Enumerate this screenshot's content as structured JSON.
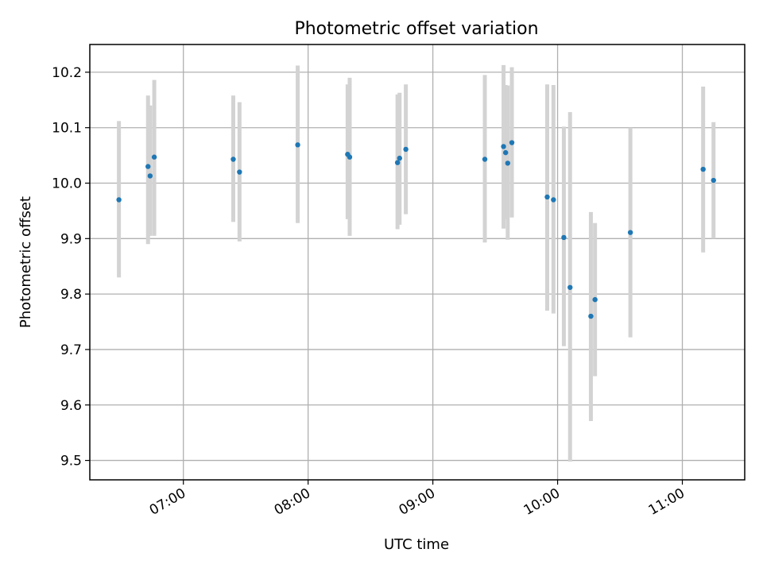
{
  "chart_data": {
    "type": "scatter",
    "title": "Photometric offset variation",
    "xlabel": "UTC time",
    "ylabel": "Photometric offset",
    "x_is_time": true,
    "xlim": [
      "06:15",
      "11:30"
    ],
    "ylim": [
      9.465,
      10.25
    ],
    "x_ticks": [
      "07:00",
      "08:00",
      "09:00",
      "10:00",
      "11:00"
    ],
    "y_ticks": [
      9.5,
      9.6,
      9.7,
      9.8,
      9.9,
      10.0,
      10.1,
      10.2
    ],
    "grid": true,
    "colors": {
      "points": "#1f77b4",
      "error_bars": "#d3d3d3"
    },
    "series": [
      {
        "error_bars": "y",
        "points": [
          {
            "x": "06:29",
            "y": 9.97,
            "ylo": 9.83,
            "yhi": 10.112
          },
          {
            "x": "06:43",
            "y": 10.03,
            "ylo": 9.89,
            "yhi": 10.158
          },
          {
            "x": "06:44",
            "y": 10.013,
            "ylo": 9.905,
            "yhi": 10.14
          },
          {
            "x": "06:46",
            "y": 10.047,
            "ylo": 9.905,
            "yhi": 10.186
          },
          {
            "x": "07:24",
            "y": 10.043,
            "ylo": 9.93,
            "yhi": 10.158
          },
          {
            "x": "07:27",
            "y": 10.02,
            "ylo": 9.895,
            "yhi": 10.146
          },
          {
            "x": "07:55",
            "y": 10.069,
            "ylo": 9.928,
            "yhi": 10.212
          },
          {
            "x": "08:19",
            "y": 10.052,
            "ylo": 9.935,
            "yhi": 10.178
          },
          {
            "x": "08:20",
            "y": 10.047,
            "ylo": 9.905,
            "yhi": 10.19
          },
          {
            "x": "08:43",
            "y": 10.037,
            "ylo": 9.917,
            "yhi": 10.16
          },
          {
            "x": "08:44",
            "y": 10.045,
            "ylo": 9.925,
            "yhi": 10.163
          },
          {
            "x": "08:47",
            "y": 10.061,
            "ylo": 9.944,
            "yhi": 10.178
          },
          {
            "x": "09:25",
            "y": 10.043,
            "ylo": 9.893,
            "yhi": 10.195
          },
          {
            "x": "09:34",
            "y": 10.066,
            "ylo": 9.918,
            "yhi": 10.213
          },
          {
            "x": "09:35",
            "y": 10.055,
            "ylo": 9.935,
            "yhi": 10.177
          },
          {
            "x": "09:36",
            "y": 10.036,
            "ylo": 9.898,
            "yhi": 10.176
          },
          {
            "x": "09:38",
            "y": 10.073,
            "ylo": 9.938,
            "yhi": 10.209
          },
          {
            "x": "09:55",
            "y": 9.975,
            "ylo": 9.77,
            "yhi": 10.178
          },
          {
            "x": "09:58",
            "y": 9.97,
            "ylo": 9.765,
            "yhi": 10.177
          },
          {
            "x": "10:03",
            "y": 9.902,
            "ylo": 9.706,
            "yhi": 10.102
          },
          {
            "x": "10:06",
            "y": 9.812,
            "ylo": 9.498,
            "yhi": 10.128
          },
          {
            "x": "10:16",
            "y": 9.76,
            "ylo": 9.571,
            "yhi": 9.948
          },
          {
            "x": "10:18",
            "y": 9.79,
            "ylo": 9.652,
            "yhi": 9.928
          },
          {
            "x": "10:35",
            "y": 9.911,
            "ylo": 9.722,
            "yhi": 10.1
          },
          {
            "x": "11:10",
            "y": 10.025,
            "ylo": 9.875,
            "yhi": 10.174
          },
          {
            "x": "11:15",
            "y": 10.005,
            "ylo": 9.9,
            "yhi": 10.11
          }
        ]
      }
    ]
  }
}
